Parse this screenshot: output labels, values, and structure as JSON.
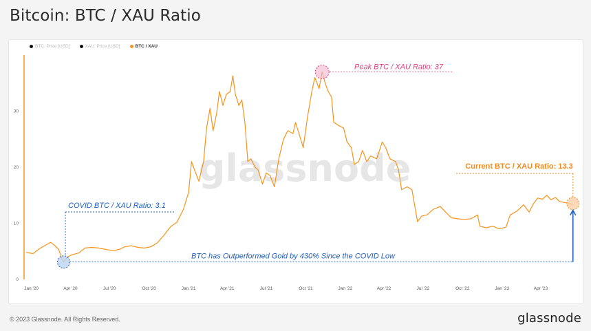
{
  "header": {
    "title": "Bitcoin: BTC / XAU Ratio"
  },
  "legend": [
    {
      "label": "BTC: Price [USD]",
      "color": "#111111",
      "active": false
    },
    {
      "label": "XAU: Price [USD]",
      "color": "#111111",
      "active": false
    },
    {
      "label": "BTC / XAU",
      "color": "#f7931a",
      "active": true
    }
  ],
  "watermark": "glassnode",
  "footer": {
    "copyright": "© 2023 Glassnode. All Rights Reserved.",
    "logo": "glassnode"
  },
  "colors": {
    "series": "#f7931a",
    "peak": "#e0407f",
    "covid": "#1f5fbf",
    "current": "#f08a1c"
  },
  "chart_data": {
    "type": "line",
    "title": "Bitcoin: BTC / XAU Ratio",
    "xlabel": "",
    "ylabel": "",
    "xlim": [
      "2019-12-15",
      "2023-06-25"
    ],
    "ylim": [
      0,
      40
    ],
    "y_ticks": [
      0,
      10,
      20,
      30
    ],
    "x_ticks": [
      {
        "date": "2020-01-01",
        "label": "Jan '20"
      },
      {
        "date": "2020-04-01",
        "label": "Apr '20"
      },
      {
        "date": "2020-07-01",
        "label": "Jul '20"
      },
      {
        "date": "2020-10-01",
        "label": "Oct '20"
      },
      {
        "date": "2021-01-01",
        "label": "Jan '21"
      },
      {
        "date": "2021-04-01",
        "label": "Apr '21"
      },
      {
        "date": "2021-07-01",
        "label": "Jul '21"
      },
      {
        "date": "2021-10-01",
        "label": "Oct '21"
      },
      {
        "date": "2022-01-01",
        "label": "Jan '22"
      },
      {
        "date": "2022-04-01",
        "label": "Apr '22"
      },
      {
        "date": "2022-07-01",
        "label": "Jul '22"
      },
      {
        "date": "2022-10-01",
        "label": "Oct '22"
      },
      {
        "date": "2023-01-01",
        "label": "Jan '23"
      },
      {
        "date": "2023-04-01",
        "label": "Apr '23"
      }
    ],
    "grid": false,
    "legend_position": "top-left",
    "series": [
      {
        "name": "BTC / XAU",
        "points": [
          [
            "2019-12-20",
            4.8
          ],
          [
            "2020-01-05",
            4.6
          ],
          [
            "2020-01-20",
            5.5
          ],
          [
            "2020-02-05",
            6.2
          ],
          [
            "2020-02-15",
            6.6
          ],
          [
            "2020-02-25",
            6.0
          ],
          [
            "2020-03-05",
            5.3
          ],
          [
            "2020-03-12",
            3.6
          ],
          [
            "2020-03-16",
            3.1
          ],
          [
            "2020-03-25",
            4.0
          ],
          [
            "2020-04-05",
            4.4
          ],
          [
            "2020-04-20",
            4.7
          ],
          [
            "2020-05-05",
            5.6
          ],
          [
            "2020-05-20",
            5.7
          ],
          [
            "2020-06-05",
            5.6
          ],
          [
            "2020-06-25",
            5.3
          ],
          [
            "2020-07-10",
            5.1
          ],
          [
            "2020-07-25",
            5.4
          ],
          [
            "2020-08-05",
            5.8
          ],
          [
            "2020-08-20",
            6.0
          ],
          [
            "2020-09-05",
            5.7
          ],
          [
            "2020-09-20",
            5.6
          ],
          [
            "2020-10-05",
            5.8
          ],
          [
            "2020-10-20",
            6.5
          ],
          [
            "2020-11-05",
            7.9
          ],
          [
            "2020-11-20",
            9.4
          ],
          [
            "2020-12-05",
            10.2
          ],
          [
            "2020-12-20",
            12.5
          ],
          [
            "2021-01-01",
            15.5
          ],
          [
            "2021-01-08",
            21.0
          ],
          [
            "2021-01-15",
            19.5
          ],
          [
            "2021-01-25",
            17.5
          ],
          [
            "2021-02-05",
            21.0
          ],
          [
            "2021-02-12",
            27.0
          ],
          [
            "2021-02-20",
            30.5
          ],
          [
            "2021-02-27",
            26.5
          ],
          [
            "2021-03-07",
            29.5
          ],
          [
            "2021-03-14",
            33.5
          ],
          [
            "2021-03-22",
            31.0
          ],
          [
            "2021-03-30",
            33.0
          ],
          [
            "2021-04-08",
            33.5
          ],
          [
            "2021-04-14",
            36.3
          ],
          [
            "2021-04-20",
            33.0
          ],
          [
            "2021-04-28",
            31.0
          ],
          [
            "2021-05-05",
            32.0
          ],
          [
            "2021-05-12",
            28.0
          ],
          [
            "2021-05-19",
            21.0
          ],
          [
            "2021-05-26",
            21.5
          ],
          [
            "2021-06-05",
            20.0
          ],
          [
            "2021-06-12",
            19.5
          ],
          [
            "2021-06-22",
            17.0
          ],
          [
            "2021-07-01",
            19.0
          ],
          [
            "2021-07-10",
            18.5
          ],
          [
            "2021-07-20",
            16.5
          ],
          [
            "2021-07-30",
            21.5
          ],
          [
            "2021-08-10",
            25.0
          ],
          [
            "2021-08-20",
            26.5
          ],
          [
            "2021-09-01",
            26.0
          ],
          [
            "2021-09-07",
            28.0
          ],
          [
            "2021-09-15",
            26.0
          ],
          [
            "2021-09-25",
            23.5
          ],
          [
            "2021-10-05",
            29.0
          ],
          [
            "2021-10-15",
            33.5
          ],
          [
            "2021-10-22",
            36.0
          ],
          [
            "2021-11-01",
            34.0
          ],
          [
            "2021-11-08",
            37.0
          ],
          [
            "2021-11-15",
            35.0
          ],
          [
            "2021-11-22",
            33.5
          ],
          [
            "2021-11-30",
            32.5
          ],
          [
            "2021-12-05",
            28.0
          ],
          [
            "2021-12-15",
            27.5
          ],
          [
            "2021-12-28",
            27.0
          ],
          [
            "2022-01-05",
            24.5
          ],
          [
            "2022-01-15",
            23.5
          ],
          [
            "2022-01-22",
            20.5
          ],
          [
            "2022-02-01",
            21.0
          ],
          [
            "2022-02-10",
            23.0
          ],
          [
            "2022-02-20",
            21.0
          ],
          [
            "2022-03-01",
            22.0
          ],
          [
            "2022-03-15",
            21.5
          ],
          [
            "2022-03-28",
            24.5
          ],
          [
            "2022-04-05",
            23.5
          ],
          [
            "2022-04-15",
            21.5
          ],
          [
            "2022-04-28",
            21.0
          ],
          [
            "2022-05-05",
            19.5
          ],
          [
            "2022-05-12",
            16.0
          ],
          [
            "2022-05-25",
            16.5
          ],
          [
            "2022-06-05",
            16.0
          ],
          [
            "2022-06-13",
            12.5
          ],
          [
            "2022-06-18",
            10.3
          ],
          [
            "2022-06-28",
            11.3
          ],
          [
            "2022-07-10",
            11.5
          ],
          [
            "2022-07-25",
            12.5
          ],
          [
            "2022-08-10",
            13.0
          ],
          [
            "2022-08-25",
            11.8
          ],
          [
            "2022-09-05",
            11.0
          ],
          [
            "2022-09-20",
            10.8
          ],
          [
            "2022-10-05",
            10.7
          ],
          [
            "2022-10-20",
            10.8
          ],
          [
            "2022-11-05",
            11.5
          ],
          [
            "2022-11-10",
            9.5
          ],
          [
            "2022-11-25",
            9.2
          ],
          [
            "2022-12-10",
            9.5
          ],
          [
            "2022-12-25",
            9.0
          ],
          [
            "2023-01-10",
            9.3
          ],
          [
            "2023-01-20",
            11.5
          ],
          [
            "2023-02-05",
            12.2
          ],
          [
            "2023-02-20",
            13.3
          ],
          [
            "2023-03-05",
            12.0
          ],
          [
            "2023-03-15",
            13.5
          ],
          [
            "2023-03-25",
            14.5
          ],
          [
            "2023-04-05",
            14.3
          ],
          [
            "2023-04-15",
            15.0
          ],
          [
            "2023-04-25",
            14.2
          ],
          [
            "2023-05-05",
            14.6
          ],
          [
            "2023-05-15",
            13.9
          ],
          [
            "2023-05-25",
            13.7
          ],
          [
            "2023-06-05",
            13.6
          ],
          [
            "2023-06-15",
            13.3
          ]
        ]
      }
    ],
    "annotations": {
      "peak": {
        "text": "Peak BTC / XAU Ratio: 37",
        "date": "2021-11-08",
        "value": 37
      },
      "covid": {
        "text": "COVID BTC / XAU Ratio: 3.1",
        "date": "2020-03-16",
        "value": 3.1
      },
      "current": {
        "text": "Current BTC / XAU Ratio: 13.3",
        "date": "2023-06-15",
        "value": 13.3
      },
      "outperformance": {
        "text": "BTC has Outperformed Gold by 430% Since the COVID Low"
      }
    }
  }
}
